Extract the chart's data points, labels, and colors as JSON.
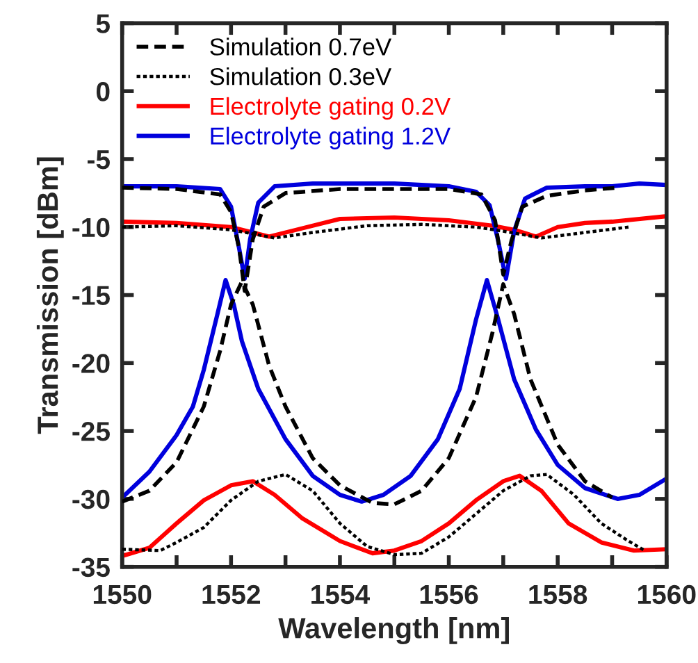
{
  "chart_data": {
    "type": "line",
    "xlabel": "Wavelength [nm]",
    "ylabel": "Transmission [dBm]",
    "xlim": [
      1550,
      1560
    ],
    "ylim": [
      -35,
      5
    ],
    "xticks": [
      1550,
      {
        "value": 1551,
        "label": null
      },
      1552,
      {
        "value": 1553,
        "label": null
      },
      1554,
      {
        "value": 1555,
        "label": null
      },
      1556,
      {
        "value": 1557,
        "label": null
      },
      1558,
      {
        "value": 1559,
        "label": null
      },
      1560
    ],
    "yticks": [
      -35,
      -30,
      -25,
      -20,
      -15,
      -10,
      -5,
      0,
      5
    ],
    "grid": false,
    "legend": "top left",
    "marker": "none",
    "series": [
      {
        "name": "Simulation 0.7eV",
        "color": "#000000",
        "line_style": "dashed",
        "x": [
          1550,
          1551,
          1551.8,
          1552.0,
          1552.15,
          1552.25,
          1552.4,
          1552.6,
          1553,
          1554,
          1556,
          1556.6,
          1556.85,
          1557.0,
          1557.15,
          1557.35,
          1557.8,
          1558.5,
          1559.1
        ],
        "values": [
          -7.1,
          -7.2,
          -7.6,
          -8.9,
          -11.6,
          -14.7,
          -10.9,
          -8.5,
          -7.5,
          -7.2,
          -7.2,
          -7.6,
          -9.5,
          -13.5,
          -11,
          -8.5,
          -7.7,
          -7.3,
          -7.1
        ]
      },
      {
        "name": "Simulation 0.3eV",
        "color": "#000000",
        "line_style": "dotted",
        "x": [
          1550,
          1551,
          1552,
          1552.8,
          1553.5,
          1554.5,
          1555.5,
          1556.5,
          1557,
          1557.7,
          1558.5,
          1559.3
        ],
        "values": [
          -10.0,
          -9.9,
          -10.2,
          -10.8,
          -10.4,
          -9.9,
          -9.8,
          -10.0,
          -10.3,
          -10.8,
          -10.4,
          -10.0
        ]
      },
      {
        "name": "Electrolyte gating 0.2V",
        "color": "#ff0000",
        "line_style": "solid",
        "x": [
          1550,
          1551,
          1552,
          1552.7,
          1553.2,
          1554,
          1555,
          1556,
          1556.8,
          1557.2,
          1557.6,
          1558,
          1558.5,
          1559,
          1560
        ],
        "values": [
          -9.6,
          -9.7,
          -10.0,
          -10.7,
          -10.2,
          -9.4,
          -9.3,
          -9.5,
          -9.9,
          -10.2,
          -10.7,
          -10.0,
          -9.7,
          -9.6,
          -9.2
        ]
      },
      {
        "name": "Electrolyte gating 1.2V",
        "color": "#0000dd",
        "line_style": "solid",
        "x": [
          1550,
          1551,
          1551.8,
          1552.0,
          1552.15,
          1552.25,
          1552.35,
          1552.5,
          1552.8,
          1553.5,
          1555,
          1556,
          1556.5,
          1556.75,
          1556.9,
          1557.05,
          1557.2,
          1557.4,
          1557.8,
          1558.5,
          1559,
          1559.5,
          1560
        ],
        "values": [
          -7.0,
          -7.0,
          -7.2,
          -8.5,
          -11.6,
          -13.8,
          -10.9,
          -8.2,
          -7.0,
          -6.8,
          -6.8,
          -7.0,
          -7.4,
          -8.4,
          -10.9,
          -13.8,
          -10.3,
          -7.9,
          -7.1,
          -7.0,
          -7.0,
          -6.8,
          -6.9
        ]
      },
      {
        "color": "#000000",
        "line_style": "dashed",
        "x": [
          1550,
          1550.5,
          1551,
          1551.5,
          1551.8,
          1552.0,
          1552.2,
          1552.4,
          1552.7,
          1553,
          1553.5,
          1554,
          1554.6,
          1555,
          1555.5,
          1556,
          1556.5,
          1556.8,
          1557.0,
          1557.2,
          1557.5,
          1558,
          1558.5,
          1559.0
        ],
        "values": [
          -30.2,
          -29.4,
          -27.3,
          -23.2,
          -19.1,
          -15.7,
          -14.0,
          -15.7,
          -20.2,
          -23.2,
          -27.0,
          -29.0,
          -30.3,
          -30.4,
          -29.4,
          -27.0,
          -22.5,
          -17.8,
          -14.2,
          -16.4,
          -21.2,
          -26.0,
          -28.7,
          -29.9
        ]
      },
      {
        "color": "#000000",
        "line_style": "dotted",
        "x": [
          1550,
          1550.7,
          1551,
          1551.5,
          1552,
          1552.5,
          1553,
          1553.5,
          1554,
          1554.5,
          1555,
          1555.5,
          1556,
          1556.5,
          1557,
          1557.5,
          1557.8,
          1558.3,
          1558.8,
          1559.3,
          1559.6
        ],
        "values": [
          -33.7,
          -33.8,
          -33.2,
          -32.1,
          -30.1,
          -28.7,
          -28.2,
          -29.4,
          -31.8,
          -33.5,
          -34.1,
          -34.0,
          -32.8,
          -31.1,
          -29.4,
          -28.3,
          -28.2,
          -29.7,
          -31.8,
          -33.1,
          -33.8
        ]
      },
      {
        "color": "#ff0000",
        "line_style": "solid",
        "x": [
          1550,
          1550.5,
          1551,
          1551.5,
          1552,
          1552.4,
          1552.8,
          1553.3,
          1554,
          1554.6,
          1555,
          1555.5,
          1556,
          1556.5,
          1557,
          1557.3,
          1557.7,
          1558.2,
          1558.8,
          1559.4,
          1560
        ],
        "values": [
          -34.2,
          -33.6,
          -31.8,
          -30.1,
          -29.0,
          -28.7,
          -29.7,
          -31.4,
          -33.1,
          -34.0,
          -33.8,
          -33.1,
          -31.8,
          -30.1,
          -28.7,
          -28.3,
          -29.4,
          -31.8,
          -33.2,
          -33.8,
          -33.7
        ]
      },
      {
        "color": "#0000dd",
        "line_style": "solid",
        "x": [
          1550,
          1550.5,
          1551,
          1551.3,
          1551.5,
          1551.75,
          1551.9,
          1552.05,
          1552.2,
          1552.5,
          1553,
          1553.5,
          1554,
          1554.4,
          1554.8,
          1555.3,
          1555.8,
          1556.2,
          1556.5,
          1556.7,
          1556.9,
          1557.2,
          1557.6,
          1558,
          1558.5,
          1559.1,
          1559.5,
          1560
        ],
        "values": [
          -29.9,
          -28.0,
          -25.3,
          -23.2,
          -20.5,
          -16.4,
          -13.9,
          -15.7,
          -18.4,
          -21.9,
          -25.6,
          -28.3,
          -29.7,
          -30.2,
          -29.7,
          -28.3,
          -25.6,
          -21.9,
          -16.8,
          -13.9,
          -16.7,
          -21.2,
          -24.9,
          -27.5,
          -29.2,
          -30.0,
          -29.7,
          -28.5
        ]
      }
    ]
  }
}
